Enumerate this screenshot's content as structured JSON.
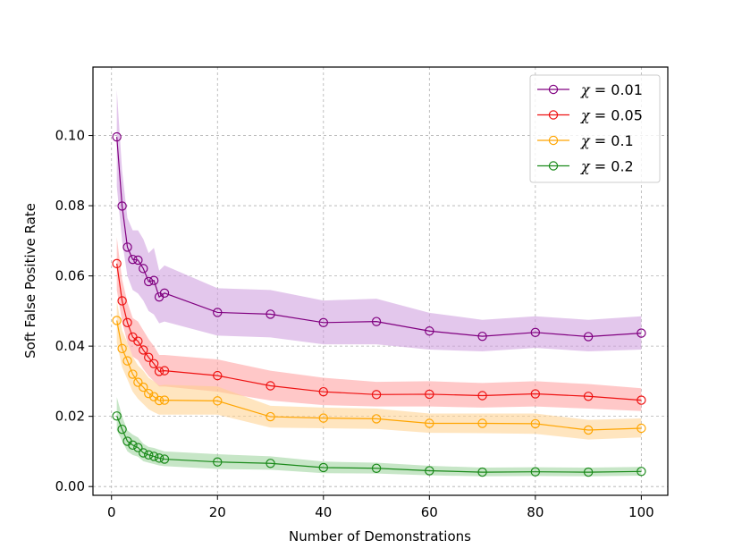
{
  "chart_data": {
    "type": "line",
    "title": "",
    "xlabel": "Number of Demonstrations",
    "ylabel": "Soft False Positive Rate",
    "xlim": [
      -3.5,
      105
    ],
    "ylim": [
      -0.0025,
      0.1195
    ],
    "xticks": [
      0,
      20,
      40,
      60,
      80,
      100
    ],
    "xtick_labels": [
      "0",
      "20",
      "40",
      "60",
      "80",
      "100"
    ],
    "yticks": [
      0.0,
      0.02,
      0.04,
      0.06,
      0.08,
      0.1
    ],
    "ytick_labels": [
      "0.00",
      "0.02",
      "0.04",
      "0.06",
      "0.08",
      "0.10"
    ],
    "grid": true,
    "legend_position": "top-right",
    "x": [
      1,
      2,
      3,
      4,
      5,
      6,
      7,
      8,
      9,
      10,
      20,
      30,
      40,
      50,
      60,
      70,
      80,
      90,
      100
    ],
    "series": [
      {
        "name": "χ = 0.01",
        "legend_symbol": "χ",
        "legend_eq": "=",
        "legend_value": "0.01",
        "color": "#800080",
        "band_color": "#cc99dd",
        "values": [
          0.0996,
          0.0799,
          0.0682,
          0.0647,
          0.0645,
          0.0621,
          0.0584,
          0.0587,
          0.054,
          0.0551,
          0.0496,
          0.0491,
          0.0467,
          0.047,
          0.0443,
          0.0428,
          0.0439,
          0.0427,
          0.0437
        ],
        "lower": [
          0.0855,
          0.07,
          0.06,
          0.056,
          0.055,
          0.053,
          0.05,
          0.049,
          0.0465,
          0.047,
          0.043,
          0.0425,
          0.0405,
          0.0405,
          0.039,
          0.0385,
          0.0395,
          0.0385,
          0.039
        ],
        "upper": [
          0.113,
          0.09,
          0.0765,
          0.073,
          0.073,
          0.0705,
          0.0665,
          0.068,
          0.0615,
          0.063,
          0.0565,
          0.056,
          0.053,
          0.0535,
          0.0495,
          0.0475,
          0.0485,
          0.0475,
          0.0485
        ]
      },
      {
        "name": "χ = 0.05",
        "legend_symbol": "χ",
        "legend_eq": "=",
        "legend_value": "0.05",
        "color": "#ee1111",
        "band_color": "#ff9a9a",
        "values": [
          0.0635,
          0.0529,
          0.0467,
          0.0426,
          0.0414,
          0.0389,
          0.0368,
          0.035,
          0.0328,
          0.033,
          0.0316,
          0.0287,
          0.027,
          0.0262,
          0.0263,
          0.0259,
          0.0264,
          0.0257,
          0.0246
        ],
        "lower": [
          0.056,
          0.047,
          0.041,
          0.037,
          0.036,
          0.0335,
          0.0315,
          0.03,
          0.0285,
          0.0285,
          0.027,
          0.0245,
          0.0232,
          0.0228,
          0.0228,
          0.0225,
          0.0228,
          0.0222,
          0.0215
        ],
        "upper": [
          0.071,
          0.059,
          0.0525,
          0.048,
          0.047,
          0.0445,
          0.042,
          0.04,
          0.0375,
          0.0375,
          0.0362,
          0.033,
          0.031,
          0.0298,
          0.03,
          0.0295,
          0.03,
          0.0292,
          0.028
        ]
      },
      {
        "name": "χ = 0.1",
        "legend_symbol": "χ",
        "legend_eq": "=",
        "legend_value": "0.1",
        "color": "#ffa500",
        "band_color": "#ffd08a",
        "values": [
          0.0473,
          0.0393,
          0.0358,
          0.032,
          0.0297,
          0.0283,
          0.0265,
          0.0256,
          0.0245,
          0.0246,
          0.0244,
          0.0199,
          0.0195,
          0.0193,
          0.018,
          0.018,
          0.0179,
          0.0161,
          0.0166
        ],
        "lower": [
          0.041,
          0.034,
          0.0305,
          0.027,
          0.025,
          0.0235,
          0.022,
          0.0212,
          0.0205,
          0.0205,
          0.0205,
          0.0168,
          0.0166,
          0.0164,
          0.0153,
          0.0152,
          0.015,
          0.0134,
          0.014
        ],
        "upper": [
          0.053,
          0.0445,
          0.041,
          0.037,
          0.0345,
          0.033,
          0.031,
          0.03,
          0.0288,
          0.029,
          0.0285,
          0.023,
          0.0225,
          0.0222,
          0.0208,
          0.0208,
          0.0208,
          0.019,
          0.0194
        ]
      },
      {
        "name": "χ = 0.2",
        "legend_symbol": "χ",
        "legend_eq": "=",
        "legend_value": "0.2",
        "color": "#1a8a1a",
        "band_color": "#99d199",
        "values": [
          0.0201,
          0.0163,
          0.0129,
          0.0118,
          0.0111,
          0.0096,
          0.009,
          0.0086,
          0.0081,
          0.0078,
          0.007,
          0.0066,
          0.0054,
          0.0052,
          0.0045,
          0.0041,
          0.0042,
          0.0041,
          0.0043
        ],
        "lower": [
          0.016,
          0.013,
          0.01,
          0.009,
          0.0085,
          0.0072,
          0.0068,
          0.0064,
          0.006,
          0.0058,
          0.005,
          0.0048,
          0.0038,
          0.0037,
          0.0032,
          0.0029,
          0.003,
          0.0029,
          0.0031
        ],
        "upper": [
          0.0255,
          0.02,
          0.016,
          0.0148,
          0.014,
          0.0122,
          0.0113,
          0.011,
          0.0105,
          0.01,
          0.0092,
          0.0086,
          0.0071,
          0.0068,
          0.0059,
          0.0054,
          0.0055,
          0.0054,
          0.0056
        ]
      }
    ]
  }
}
